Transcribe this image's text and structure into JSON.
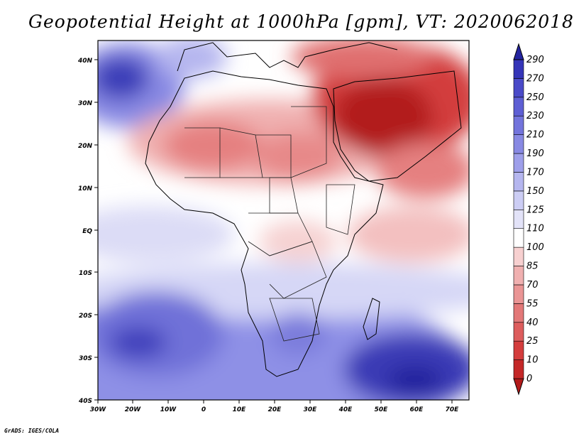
{
  "title": "Geopotential Height at 1000hPa [gpm], VT: 2020062018",
  "footer": "GrADS: IGES/COLA",
  "colors": {
    "bands": [
      "#b21a1a",
      "#c42828",
      "#d43d3d",
      "#dd5d5d",
      "#e37878",
      "#ea9595",
      "#f0b0b0",
      "#f7d0d0",
      "#ffffff",
      "#e3e3f8",
      "#cccdf4",
      "#b5b6ef",
      "#9e9fea",
      "#8889e3",
      "#7374dc",
      "#5e5fd4",
      "#4a4ac8",
      "#3535b8",
      "#2424a0"
    ]
  },
  "map": {
    "lon_labels": [
      "30W",
      "20W",
      "10W",
      "0",
      "10E",
      "20E",
      "30E",
      "40E",
      "50E",
      "60E",
      "70E"
    ],
    "lat_labels": [
      "40N",
      "30N",
      "20N",
      "10N",
      "EQ",
      "10S",
      "20S",
      "30S",
      "40S"
    ]
  },
  "colorbar": {
    "labels": [
      "290",
      "270",
      "250",
      "230",
      "210",
      "190",
      "170",
      "150",
      "125",
      "110",
      "100",
      "85",
      "70",
      "55",
      "40",
      "25",
      "10",
      "0"
    ]
  }
}
